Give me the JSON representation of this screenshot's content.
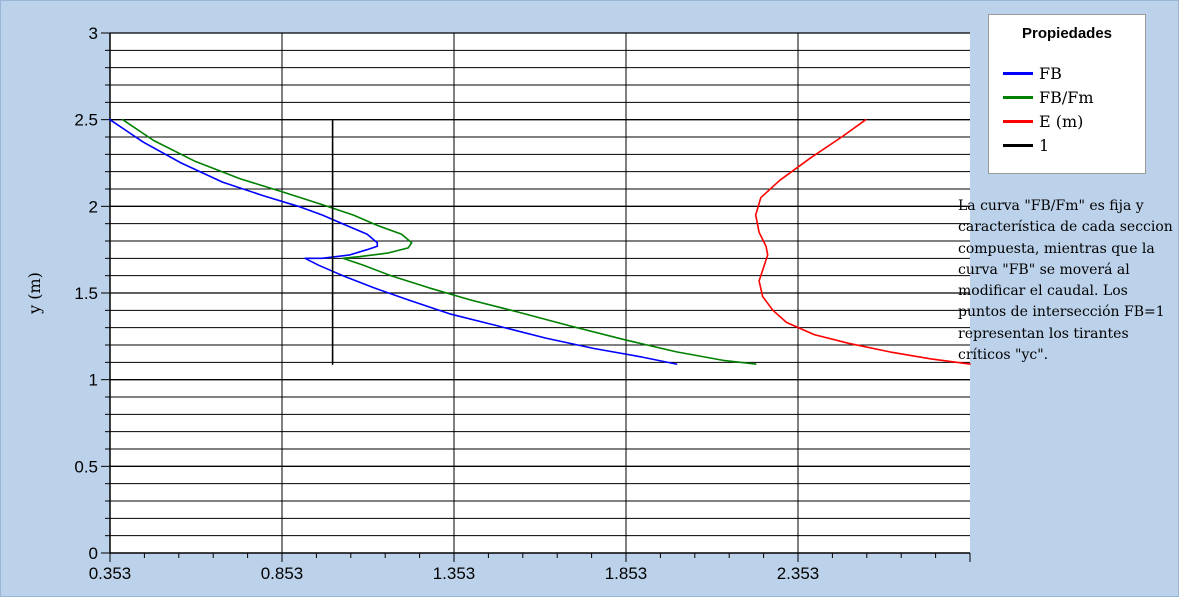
{
  "chart_data": {
    "type": "line",
    "title": "",
    "xlabel": "",
    "ylabel": "y (m)",
    "xlim": [
      0.353,
      2.853
    ],
    "ylim": [
      0,
      3
    ],
    "x_ticks": [
      "0.353",
      "0.853",
      "1.353",
      "1.853",
      "2.353"
    ],
    "y_ticks": [
      "0",
      "0.5",
      "1",
      "1.5",
      "2",
      "2.5",
      "3"
    ],
    "grid": true,
    "legend": {
      "title": "Propiedades",
      "placement": "right",
      "entries": [
        "FB",
        "FB/Fm",
        "E (m)",
        "1"
      ]
    },
    "series": [
      {
        "name": "FB",
        "color": "#0000ff",
        "points": [
          [
            0.353,
            2.5
          ],
          [
            0.45,
            2.37
          ],
          [
            0.56,
            2.25
          ],
          [
            0.68,
            2.14
          ],
          [
            0.8,
            2.06
          ],
          [
            0.9,
            2.0
          ],
          [
            0.97,
            1.95
          ],
          [
            1.04,
            1.89
          ],
          [
            1.1,
            1.84
          ],
          [
            1.13,
            1.79
          ],
          [
            1.13,
            1.77
          ],
          [
            1.1,
            1.75
          ],
          [
            1.05,
            1.72
          ],
          [
            0.97,
            1.7
          ],
          [
            0.92,
            1.7
          ],
          [
            0.96,
            1.66
          ],
          [
            1.03,
            1.6
          ],
          [
            1.12,
            1.53
          ],
          [
            1.22,
            1.46
          ],
          [
            1.34,
            1.38
          ],
          [
            1.48,
            1.31
          ],
          [
            1.62,
            1.24
          ],
          [
            1.76,
            1.18
          ],
          [
            1.9,
            1.13
          ],
          [
            2.0,
            1.09
          ]
        ]
      },
      {
        "name": "FB/Fm",
        "color": "#008000",
        "points": [
          [
            0.39,
            2.5
          ],
          [
            0.48,
            2.38
          ],
          [
            0.6,
            2.26
          ],
          [
            0.73,
            2.16
          ],
          [
            0.86,
            2.08
          ],
          [
            0.97,
            2.01
          ],
          [
            1.06,
            1.95
          ],
          [
            1.13,
            1.89
          ],
          [
            1.2,
            1.84
          ],
          [
            1.23,
            1.79
          ],
          [
            1.22,
            1.76
          ],
          [
            1.16,
            1.73
          ],
          [
            1.08,
            1.71
          ],
          [
            1.03,
            1.7
          ],
          [
            1.09,
            1.66
          ],
          [
            1.17,
            1.6
          ],
          [
            1.28,
            1.53
          ],
          [
            1.4,
            1.46
          ],
          [
            1.54,
            1.39
          ],
          [
            1.69,
            1.31
          ],
          [
            1.85,
            1.23
          ],
          [
            2.0,
            1.16
          ],
          [
            2.14,
            1.11
          ],
          [
            2.23,
            1.09
          ]
        ]
      },
      {
        "name": "E (m)",
        "color": "#ff0000",
        "points": [
          [
            2.55,
            2.5
          ],
          [
            2.48,
            2.4
          ],
          [
            2.39,
            2.28
          ],
          [
            2.3,
            2.15
          ],
          [
            2.245,
            2.05
          ],
          [
            2.23,
            1.95
          ],
          [
            2.24,
            1.85
          ],
          [
            2.26,
            1.77
          ],
          [
            2.265,
            1.72
          ],
          [
            2.255,
            1.66
          ],
          [
            2.24,
            1.57
          ],
          [
            2.25,
            1.48
          ],
          [
            2.28,
            1.4
          ],
          [
            2.32,
            1.33
          ],
          [
            2.4,
            1.26
          ],
          [
            2.5,
            1.21
          ],
          [
            2.62,
            1.16
          ],
          [
            2.74,
            1.12
          ],
          [
            2.853,
            1.09
          ]
        ]
      },
      {
        "name": "1",
        "color": "#000000",
        "points": [
          [
            1.0,
            2.5
          ],
          [
            1.0,
            1.09
          ]
        ]
      }
    ]
  },
  "note": "La curva \"FB/Fm\" es fija y característica de cada seccion compuesta, mientras que la curva \"FB\" se moverá al modificar el caudal. Los puntos de intersección FB=1 representan los tirantes críticos \"yc\"."
}
